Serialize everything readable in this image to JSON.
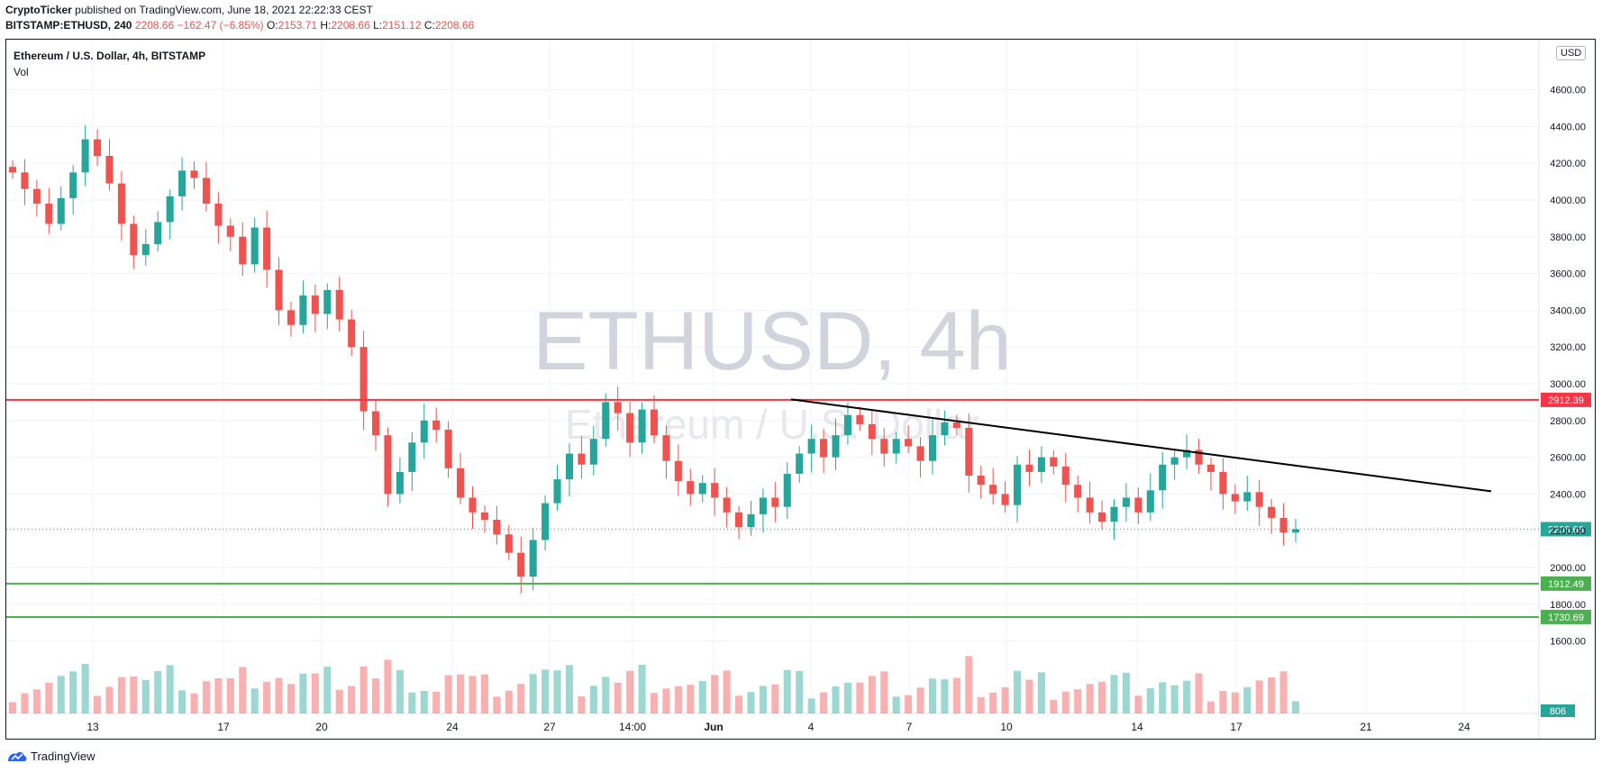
{
  "header": {
    "author": "CryptoTicker",
    "published_text": "published on TradingView.com, June 18, 2021 22:22:33 CEST",
    "symbol": "BITSTAMP:ETHUSD, 240",
    "last": "2208.66",
    "change": "−162.47 (−6.85%)",
    "o_label": "O:",
    "o_value": "2153.71",
    "h_label": "H:",
    "h_value": "2208.66",
    "l_label": "L:",
    "l_value": "2151.12",
    "c_label": "C:",
    "c_value": "2208.66"
  },
  "legend": {
    "title": "Ethereum / U.S. Dollar, 4h, BITSTAMP",
    "volume": "Vol"
  },
  "watermark": {
    "symbol": "ETHUSD, 4h",
    "name": "Ethereum / U.S. Dollar"
  },
  "currency_badge": "USD",
  "footer": {
    "brand": "TradingView"
  },
  "colors": {
    "up": "#26a69a",
    "down": "#ef5350",
    "resistance": "#f23645",
    "support": "#4caf50",
    "trendline": "#000000"
  },
  "chart_data": {
    "type": "candlestick",
    "timeframe": "4h",
    "y_axis": {
      "ticks": [
        1600,
        1800,
        2000,
        2200,
        2400,
        2600,
        2800,
        3000,
        3200,
        3400,
        3600,
        3800,
        4000,
        4200,
        4400,
        4600
      ],
      "format": "2dp",
      "ylim": [
        1490,
        4680
      ]
    },
    "x_axis": {
      "labels": [
        "13",
        "17",
        "20",
        "24",
        "27",
        "14:00",
        "Jun",
        "4",
        "7",
        "10",
        "14",
        "17",
        "21",
        "24"
      ]
    },
    "price_labels": [
      {
        "value": 2912.39,
        "kind": "resistance"
      },
      {
        "value": 2208.66,
        "kind": "last"
      },
      {
        "value": 1912.49,
        "kind": "support"
      },
      {
        "value": 1730.69,
        "kind": "support"
      }
    ],
    "volume_label": "806",
    "trendline": {
      "from": {
        "date": "2021-06-03",
        "price": 2915
      },
      "to": {
        "date": "2021-06-25",
        "price": 2415
      }
    },
    "series_close": [
      4150,
      4060,
      3980,
      3870,
      4010,
      4150,
      4330,
      4240,
      4090,
      3870,
      3700,
      3760,
      3880,
      4020,
      4160,
      4120,
      3980,
      3860,
      3800,
      3650,
      3850,
      3620,
      3400,
      3320,
      3480,
      3380,
      3510,
      3350,
      3200,
      2850,
      2720,
      2400,
      2520,
      2680,
      2800,
      2750,
      2540,
      2380,
      2300,
      2260,
      2180,
      2080,
      1950,
      2150,
      2350,
      2480,
      2620,
      2560,
      2700,
      2900,
      2840,
      2680,
      2860,
      2720,
      2580,
      2470,
      2400,
      2460,
      2380,
      2300,
      2220,
      2290,
      2380,
      2330,
      2510,
      2620,
      2700,
      2600,
      2720,
      2830,
      2780,
      2700,
      2620,
      2700,
      2660,
      2580,
      2720,
      2790,
      2760,
      2500,
      2450,
      2400,
      2340,
      2560,
      2520,
      2600,
      2550,
      2450,
      2380,
      2300,
      2250,
      2330,
      2380,
      2300,
      2420,
      2560,
      2600,
      2640,
      2560,
      2520,
      2400,
      2360,
      2410,
      2330,
      2270,
      2190,
      2208.66
    ]
  }
}
